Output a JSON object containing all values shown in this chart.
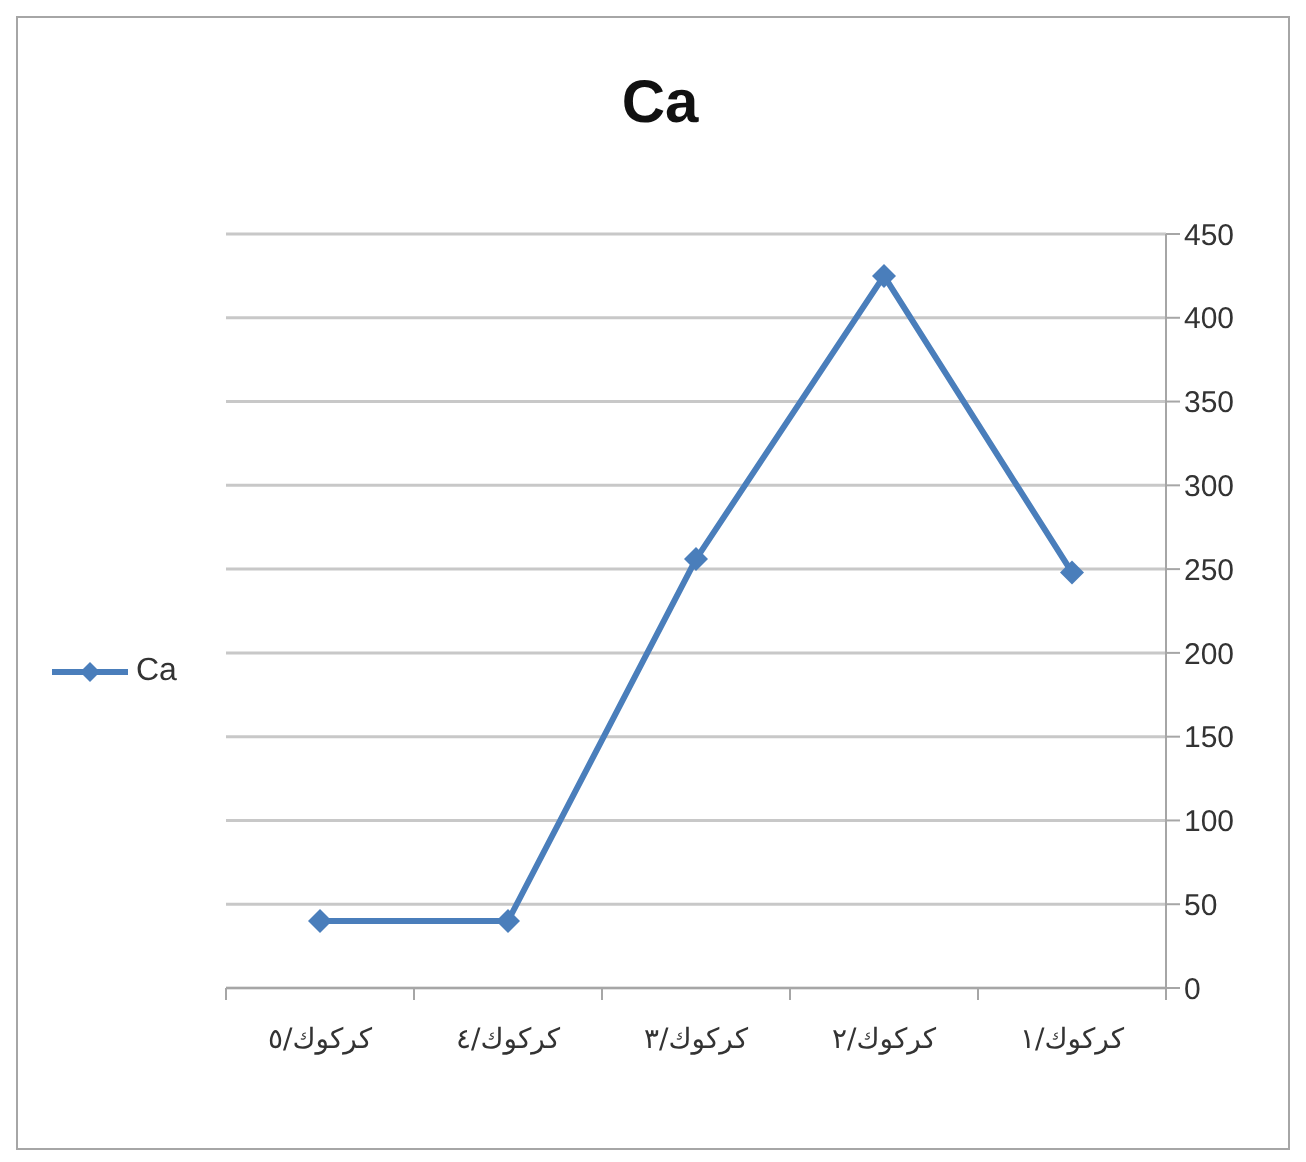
{
  "chart_data": {
    "type": "line",
    "title": "Ca",
    "categories": [
      "كركوك/٥",
      "كركوك/٤",
      "كركوك/٣",
      "كركوك/٢",
      "كركوك/١"
    ],
    "series": [
      {
        "name": "Ca",
        "color": "#4a7ebb",
        "values": [
          40,
          40,
          256,
          425,
          248
        ]
      }
    ],
    "ylim": [
      0,
      450
    ],
    "yticks": [
      0,
      50,
      100,
      150,
      200,
      250,
      300,
      350,
      400,
      450
    ],
    "grid": "y",
    "legend": "left",
    "marker": "diamond",
    "line_style": "solid"
  }
}
